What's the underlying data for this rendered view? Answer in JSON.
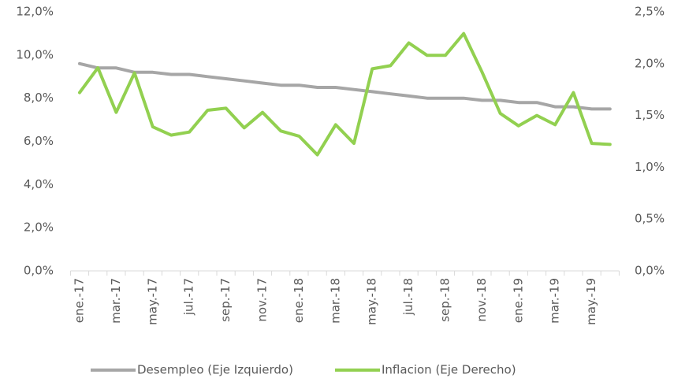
{
  "chart_data": {
    "type": "line",
    "categories": [
      "ene.-17",
      null,
      "mar.-17",
      null,
      "may.-17",
      null,
      "jul.-17",
      null,
      "sep.-17",
      null,
      "nov.-17",
      null,
      "ene.-18",
      null,
      "mar.-18",
      null,
      "may.-18",
      null,
      "jul.-18",
      null,
      "sep.-18",
      null,
      "nov.-18",
      null,
      "ene.-19",
      null,
      "mar.-19",
      null,
      "may.-19",
      null
    ],
    "series": [
      {
        "name": "Desempleo (Eje Izquierdo)",
        "color": "#a6a6a6",
        "axis": "y",
        "values": [
          9.6,
          9.4,
          9.4,
          9.2,
          9.2,
          9.1,
          9.1,
          9.0,
          8.9,
          8.8,
          8.7,
          8.6,
          8.6,
          8.5,
          8.5,
          8.4,
          8.3,
          8.2,
          8.1,
          8.0,
          8.0,
          8.0,
          7.9,
          7.9,
          7.8,
          7.8,
          7.6,
          7.6,
          7.5,
          7.5
        ]
      },
      {
        "name": "Inflacion (Eje Derecho)",
        "color": "#92d050",
        "axis": "y2",
        "values": [
          1.72,
          1.96,
          1.53,
          1.91,
          1.39,
          1.31,
          1.34,
          1.55,
          1.57,
          1.38,
          1.53,
          1.35,
          1.3,
          1.12,
          1.41,
          1.23,
          1.95,
          1.98,
          2.2,
          2.08,
          2.08,
          2.29,
          1.92,
          1.52,
          1.4,
          1.5,
          1.41,
          1.72,
          1.23,
          1.22
        ]
      }
    ],
    "ylim": [
      0,
      12
    ],
    "yticks": [
      {
        "value": 0,
        "label": "0,0%"
      },
      {
        "value": 2,
        "label": "2,0%"
      },
      {
        "value": 4,
        "label": "4,0%"
      },
      {
        "value": 6,
        "label": "6,0%"
      },
      {
        "value": 8,
        "label": "8,0%"
      },
      {
        "value": 10,
        "label": "10,0%"
      },
      {
        "value": 12,
        "label": "12,0%"
      }
    ],
    "y2lim": [
      0,
      2.5
    ],
    "y2ticks": [
      {
        "value": 0,
        "label": "0,0%"
      },
      {
        "value": 0.5,
        "label": "0,5%"
      },
      {
        "value": 1,
        "label": "1,0%"
      },
      {
        "value": 1.5,
        "label": "1,5%"
      },
      {
        "value": 2,
        "label": "2,0%"
      },
      {
        "value": 2.5,
        "label": "2,5%"
      }
    ],
    "legend": "bottom",
    "grid": false
  }
}
